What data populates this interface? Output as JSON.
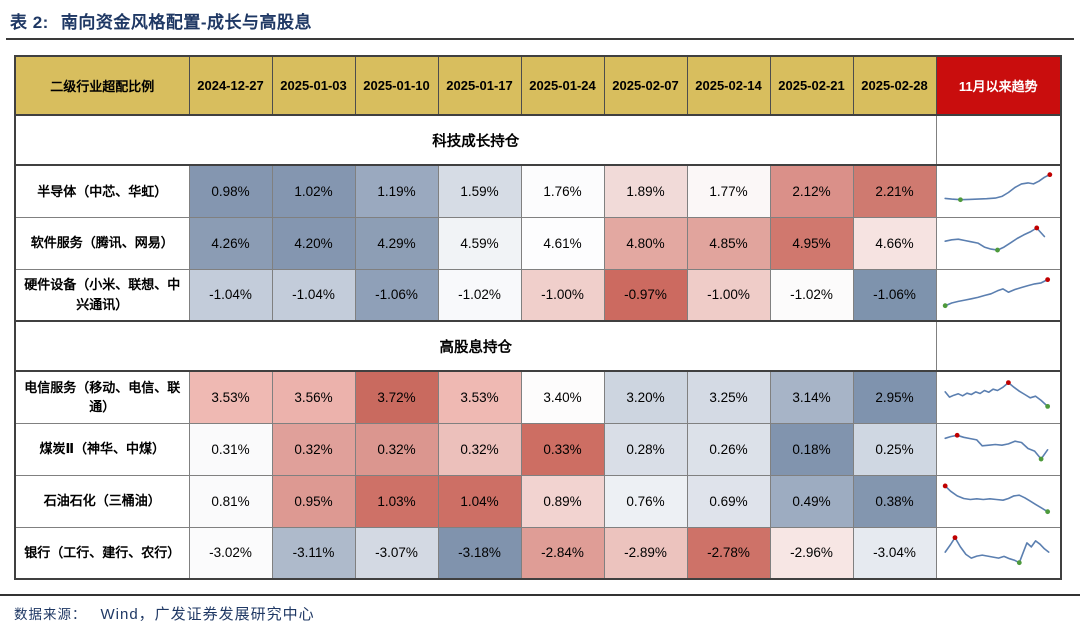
{
  "title": {
    "label": "表 2:",
    "text": "南向资金风格配置-成长与高股息"
  },
  "footer": {
    "label": "数据来源：",
    "text": "Wind，广发证券发展研究中心"
  },
  "colors": {
    "header_bg": "#D8BE5E",
    "trend_header_bg": "#C90D0D",
    "trend_header_fg": "#FFFFFF",
    "title_fg": "#1F3864",
    "footer_fg": "#1F3864",
    "spark_line": "#5B7FB0",
    "spark_max_dot": "#C00000",
    "spark_min_dot": "#4E9A3C"
  },
  "chart_data": {
    "type": "table",
    "title": "表 2: 南向资金风格配置-成长与高股息",
    "corner_header": "二级行业超配比例",
    "date_columns": [
      "2024-12-27",
      "2025-01-03",
      "2025-01-10",
      "2025-01-17",
      "2025-01-24",
      "2025-02-07",
      "2025-02-14",
      "2025-02-21",
      "2025-02-28"
    ],
    "trend_column": "11月以来趋势",
    "sections": [
      {
        "title": "科技成长持仓",
        "rows": [
          {
            "label": "半导体（中芯、华虹）",
            "values": [
              "0.98%",
              "1.02%",
              "1.19%",
              "1.59%",
              "1.76%",
              "1.89%",
              "1.77%",
              "2.12%",
              "2.21%"
            ],
            "cell_colors": [
              "#8496B0",
              "#8496B0",
              "#9AA9BF",
              "#D6DCE5",
              "#FCFCFD",
              "#F1DAD8",
              "#FBF7F7",
              "#DA9089",
              "#CF7A70"
            ],
            "spark": {
              "points": [
                [
                  2,
                  80
                ],
                [
                  8,
                  82
                ],
                [
                  16,
                  84
                ],
                [
                  24,
                  83
                ],
                [
                  32,
                  82
                ],
                [
                  40,
                  81
                ],
                [
                  48,
                  79
                ],
                [
                  54,
                  74
                ],
                [
                  60,
                  62
                ],
                [
                  66,
                  47
                ],
                [
                  72,
                  36
                ],
                [
                  78,
                  33
                ],
                [
                  83,
                  36
                ],
                [
                  88,
                  28
                ],
                [
                  93,
                  16
                ],
                [
                  98,
                  8
                ]
              ],
              "max_idx": 15,
              "min_idx": 2
            }
          },
          {
            "label": "软件服务（腾讯、网易）",
            "values": [
              "4.26%",
              "4.20%",
              "4.29%",
              "4.59%",
              "4.61%",
              "4.80%",
              "4.85%",
              "4.95%",
              "4.66%"
            ],
            "cell_colors": [
              "#8B9CB4",
              "#8496B0",
              "#8D9EB5",
              "#F1F3F6",
              "#FDFDFE",
              "#E3A8A1",
              "#E1A49D",
              "#D0786E",
              "#F6E3E1"
            ],
            "spark": {
              "points": [
                [
                  2,
                  52
                ],
                [
                  8,
                  48
                ],
                [
                  14,
                  46
                ],
                [
                  20,
                  50
                ],
                [
                  26,
                  54
                ],
                [
                  32,
                  58
                ],
                [
                  38,
                  70
                ],
                [
                  44,
                  76
                ],
                [
                  50,
                  79
                ],
                [
                  56,
                  70
                ],
                [
                  62,
                  57
                ],
                [
                  68,
                  44
                ],
                [
                  74,
                  33
                ],
                [
                  80,
                  24
                ],
                [
                  86,
                  12
                ],
                [
                  93,
                  38
                ]
              ],
              "max_idx": 14,
              "min_idx": 8
            }
          },
          {
            "label": "硬件设备（小米、联想、中兴通讯）",
            "values": [
              "-1.04%",
              "-1.04%",
              "-1.06%",
              "-1.02%",
              "-1.00%",
              "-0.97%",
              "-1.00%",
              "-1.02%",
              "-1.06%"
            ],
            "cell_colors": [
              "#C3CCDA",
              "#C3CCDA",
              "#8FA0B8",
              "#F8F9FB",
              "#F0CFCB",
              "#CC6A60",
              "#EFCCC8",
              "#FCFBFB",
              "#7E93AD"
            ],
            "spark": {
              "points": [
                [
                  2,
                  93
                ],
                [
                  8,
                  85
                ],
                [
                  14,
                  80
                ],
                [
                  20,
                  76
                ],
                [
                  26,
                  72
                ],
                [
                  32,
                  68
                ],
                [
                  38,
                  62
                ],
                [
                  44,
                  57
                ],
                [
                  50,
                  48
                ],
                [
                  55,
                  42
                ],
                [
                  60,
                  52
                ],
                [
                  66,
                  44
                ],
                [
                  72,
                  38
                ],
                [
                  78,
                  32
                ],
                [
                  84,
                  27
                ],
                [
                  90,
                  24
                ],
                [
                  96,
                  14
                ]
              ],
              "max_idx": 16,
              "min_idx": 0
            }
          }
        ]
      },
      {
        "title": "高股息持仓",
        "rows": [
          {
            "label": "电信服务（移动、电信、联通）",
            "values": [
              "3.53%",
              "3.56%",
              "3.72%",
              "3.53%",
              "3.40%",
              "3.20%",
              "3.25%",
              "3.14%",
              "2.95%"
            ],
            "cell_colors": [
              "#EFB9B3",
              "#ECB2AC",
              "#C96A5F",
              "#EFB9B3",
              "#FDFCFC",
              "#CDD5E0",
              "#D4DAE4",
              "#A7B4C7",
              "#7F93AE"
            ],
            "spark": {
              "points": [
                [
                  2,
                  42
                ],
                [
                  6,
                  58
                ],
                [
                  10,
                  52
                ],
                [
                  14,
                  48
                ],
                [
                  18,
                  54
                ],
                [
                  22,
                  46
                ],
                [
                  26,
                  50
                ],
                [
                  30,
                  42
                ],
                [
                  34,
                  47
                ],
                [
                  38,
                  38
                ],
                [
                  42,
                  43
                ],
                [
                  46,
                  34
                ],
                [
                  50,
                  38
                ],
                [
                  55,
                  28
                ],
                [
                  60,
                  14
                ],
                [
                  65,
                  28
                ],
                [
                  70,
                  40
                ],
                [
                  75,
                  50
                ],
                [
                  80,
                  60
                ],
                [
                  85,
                  55
                ],
                [
                  90,
                  68
                ],
                [
                  96,
                  86
                ]
              ],
              "max_idx": 14,
              "min_idx": 21
            }
          },
          {
            "label": "煤炭Ⅱ（神华、中煤）",
            "values": [
              "0.31%",
              "0.32%",
              "0.32%",
              "0.32%",
              "0.33%",
              "0.28%",
              "0.26%",
              "0.18%",
              "0.25%"
            ],
            "cell_colors": [
              "#FAFAFB",
              "#E0A09A",
              "#DB968F",
              "#ECC0BB",
              "#CD6E63",
              "#D9DEE7",
              "#DCE1E9",
              "#8194AE",
              "#CFD7E2"
            ],
            "spark": {
              "points": [
                [
                  2,
                  25
                ],
                [
                  7,
                  20
                ],
                [
                  13,
                  16
                ],
                [
                  19,
                  22
                ],
                [
                  25,
                  26
                ],
                [
                  31,
                  30
                ],
                [
                  36,
                  48
                ],
                [
                  42,
                  46
                ],
                [
                  48,
                  44
                ],
                [
                  54,
                  46
                ],
                [
                  60,
                  42
                ],
                [
                  66,
                  34
                ],
                [
                  72,
                  38
                ],
                [
                  78,
                  56
                ],
                [
                  84,
                  64
                ],
                [
                  90,
                  88
                ],
                [
                  96,
                  60
                ]
              ],
              "max_idx": 2,
              "min_idx": 15
            }
          },
          {
            "label": "石油石化（三桶油）",
            "values": [
              "0.81%",
              "0.95%",
              "1.03%",
              "1.04%",
              "0.89%",
              "0.76%",
              "0.69%",
              "0.49%",
              "0.38%"
            ],
            "cell_colors": [
              "#FAFAFB",
              "#DD9992",
              "#CE7167",
              "#CD6F65",
              "#F2D3D0",
              "#EDF0F4",
              "#DFE3EB",
              "#9DACC1",
              "#8396AF"
            ],
            "spark": {
              "points": [
                [
                  2,
                  12
                ],
                [
                  7,
                  28
                ],
                [
                  13,
                  42
                ],
                [
                  19,
                  50
                ],
                [
                  25,
                  53
                ],
                [
                  31,
                  51
                ],
                [
                  37,
                  53
                ],
                [
                  43,
                  51
                ],
                [
                  49,
                  53
                ],
                [
                  55,
                  55
                ],
                [
                  60,
                  50
                ],
                [
                  65,
                  42
                ],
                [
                  70,
                  40
                ],
                [
                  75,
                  48
                ],
                [
                  80,
                  58
                ],
                [
                  85,
                  68
                ],
                [
                  90,
                  78
                ],
                [
                  96,
                  90
                ]
              ],
              "max_idx": 0,
              "min_idx": 17
            }
          },
          {
            "label": "银行（工行、建行、农行）",
            "values": [
              "-3.02%",
              "-3.11%",
              "-3.07%",
              "-3.18%",
              "-2.84%",
              "-2.89%",
              "-2.78%",
              "-2.96%",
              "-3.04%"
            ],
            "cell_colors": [
              "#FBFBFC",
              "#AEBACB",
              "#D3D9E3",
              "#8093AD",
              "#DF9D96",
              "#ECC3BE",
              "#CE7268",
              "#F7E6E4",
              "#E6EAF0"
            ],
            "spark": {
              "points": [
                [
                  2,
                  58
                ],
                [
                  7,
                  35
                ],
                [
                  11,
                  14
                ],
                [
                  16,
                  42
                ],
                [
                  21,
                  65
                ],
                [
                  26,
                  76
                ],
                [
                  31,
                  70
                ],
                [
                  36,
                  67
                ],
                [
                  41,
                  70
                ],
                [
                  46,
                  73
                ],
                [
                  51,
                  76
                ],
                [
                  56,
                  71
                ],
                [
                  61,
                  78
                ],
                [
                  66,
                  83
                ],
                [
                  70,
                  90
                ],
                [
                  74,
                  55
                ],
                [
                  77,
                  30
                ],
                [
                  81,
                  42
                ],
                [
                  85,
                  24
                ],
                [
                  89,
                  34
                ],
                [
                  93,
                  48
                ],
                [
                  97,
                  58
                ]
              ],
              "max_idx": 2,
              "min_idx": 14
            }
          }
        ]
      }
    ],
    "source": "数据来源： Wind，广发证券发展研究中心"
  }
}
